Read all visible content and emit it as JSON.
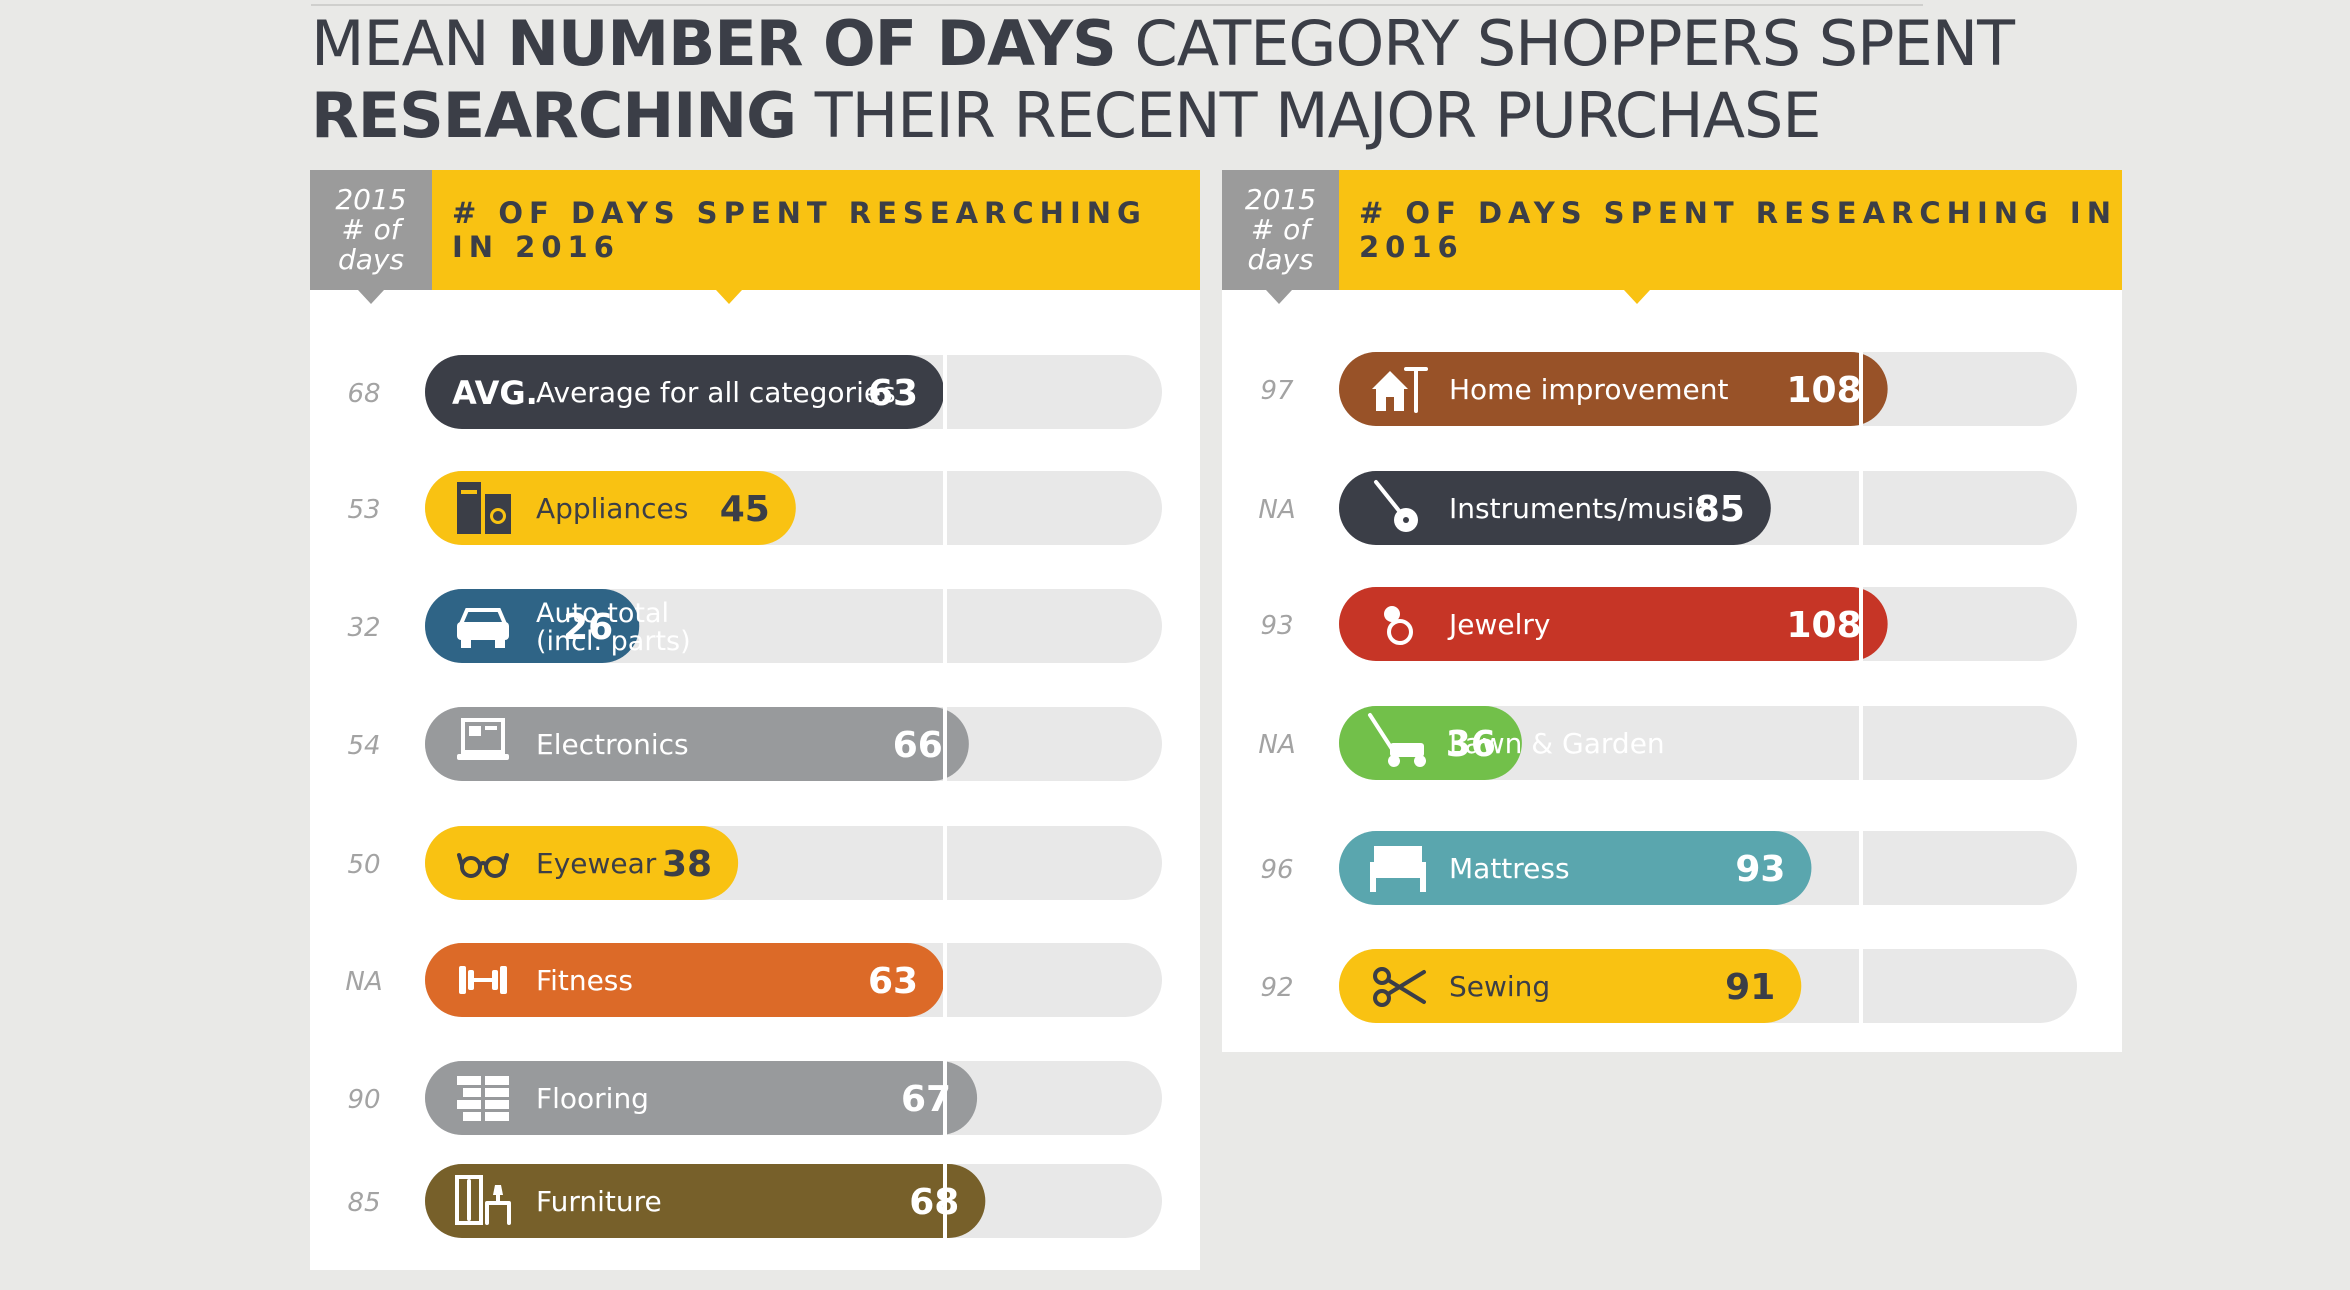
{
  "title": {
    "part1": "MEAN ",
    "part2": "NUMBER OF DAYS",
    "part3": " CATEGORY SHOPPERS SPENT",
    "part4": "RESEARCHING",
    "part5": " THEIR RECENT MAJOR PURCHASE"
  },
  "header": {
    "year_label_line1": "2015",
    "year_label_line2": "# of",
    "year_label_line3": "days",
    "main_label": "# OF DAYS SPENT RESEARCHING IN 2016"
  },
  "colors": {
    "track": "#e8e8e8",
    "divider": "#ffffff",
    "dark": "#3b3e47",
    "yellow": "#f9c212",
    "blue": "#2f6486",
    "gray": "#989a9c",
    "orange": "#dc6a28",
    "olive": "#77602a",
    "brown": "#985228",
    "red": "#c63526",
    "green": "#72c04a",
    "teal": "#5aa6ae"
  },
  "chart_data": [
    {
      "type": "bar",
      "xlim": [
        0,
        100
      ],
      "reference_line": 63,
      "categories": [
        "Average for all categories",
        "Appliances",
        "Auto total (incl. parts)",
        "Electronics",
        "Eyewear",
        "Fitness",
        "Flooring",
        "Furniture"
      ],
      "series": [
        {
          "name": "2016",
          "values": [
            63,
            45,
            26,
            66,
            38,
            63,
            67,
            68
          ]
        },
        {
          "name": "2015",
          "values": [
            "68",
            "53",
            "32",
            "54",
            "50",
            "NA",
            "90",
            "85"
          ]
        }
      ],
      "rows": [
        {
          "prefix": "AVG.",
          "label": "Average for all categories",
          "value": 63,
          "prev": "68",
          "color": "#3b3e47",
          "text": "#ffffff",
          "icon": "avg-label"
        },
        {
          "label": "Appliances",
          "value": 45,
          "prev": "53",
          "color": "#f9c212",
          "text": "#3b3e47",
          "icon": "appliances-icon"
        },
        {
          "label": "Auto total",
          "label2": "(incl. parts)",
          "value": 26,
          "prev": "32",
          "color": "#2f6486",
          "text": "#ffffff",
          "icon": "car-icon"
        },
        {
          "label": "Electronics",
          "value": 66,
          "prev": "54",
          "color": "#989a9c",
          "text": "#ffffff",
          "icon": "laptop-icon"
        },
        {
          "label": "Eyewear",
          "value": 38,
          "prev": "50",
          "color": "#f9c212",
          "text": "#3b3e47",
          "icon": "glasses-icon"
        },
        {
          "label": "Fitness",
          "value": 63,
          "prev": "NA",
          "color": "#dc6a28",
          "text": "#ffffff",
          "icon": "dumbbell-icon"
        },
        {
          "label": "Flooring",
          "value": 67,
          "prev": "90",
          "color": "#989a9c",
          "text": "#ffffff",
          "icon": "bricks-icon"
        },
        {
          "label": "Furniture",
          "value": 68,
          "prev": "85",
          "color": "#77602a",
          "text": "#ffffff",
          "icon": "furniture-icon"
        }
      ]
    },
    {
      "type": "bar",
      "xlim": [
        0,
        145
      ],
      "reference_line": 100,
      "categories": [
        "Home improvement",
        "Instruments/music",
        "Jewelry",
        "Lawn & Garden",
        "Mattress",
        "Sewing"
      ],
      "series": [
        {
          "name": "2016",
          "values": [
            108,
            85,
            108,
            36,
            93,
            91
          ]
        },
        {
          "name": "2015",
          "values": [
            "97",
            "NA",
            "93",
            "NA",
            "96",
            "92"
          ]
        }
      ],
      "rows": [
        {
          "label": "Home improvement",
          "value": 108,
          "prev": "97",
          "color": "#985228",
          "text": "#ffffff",
          "icon": "house-tools-icon"
        },
        {
          "label": "Instruments/music",
          "value": 85,
          "prev": "NA",
          "color": "#3b3e47",
          "text": "#ffffff",
          "icon": "guitar-icon"
        },
        {
          "label": "Jewelry",
          "value": 108,
          "prev": "93",
          "color": "#c63526",
          "text": "#ffffff",
          "icon": "ring-icon"
        },
        {
          "label": "Lawn & Garden",
          "value": 36,
          "prev": "NA",
          "color": "#72c04a",
          "text": "#ffffff",
          "icon": "lawnmower-icon"
        },
        {
          "label": "Mattress",
          "value": 93,
          "prev": "96",
          "color": "#5aa6ae",
          "text": "#ffffff",
          "icon": "bed-icon"
        },
        {
          "label": "Sewing",
          "value": 91,
          "prev": "92",
          "color": "#f9c212",
          "text": "#3b3e47",
          "icon": "scissors-icon"
        }
      ]
    }
  ]
}
